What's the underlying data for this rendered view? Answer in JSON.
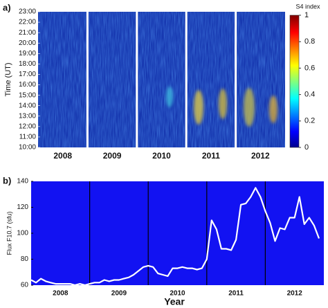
{
  "chart_data": [
    {
      "type": "heatmap",
      "label": "a)",
      "ylabel": "Time (UT)",
      "categories": [
        "2008",
        "2009",
        "2010",
        "2011",
        "2012"
      ],
      "ylim": [
        10,
        23
      ],
      "yticks": [
        {
          "value": 10,
          "label": "10:00"
        },
        {
          "value": 11,
          "label": "11:00"
        },
        {
          "value": 12,
          "label": "12:00"
        },
        {
          "value": 13,
          "label": "13:00"
        },
        {
          "value": 14,
          "label": "14:00"
        },
        {
          "value": 15,
          "label": "15:00"
        },
        {
          "value": 16,
          "label": "16:00"
        },
        {
          "value": 17,
          "label": "17:00"
        },
        {
          "value": 18,
          "label": "18:00"
        },
        {
          "value": 19,
          "label": "19:00"
        },
        {
          "value": 20,
          "label": "20:00"
        },
        {
          "value": 21,
          "label": "21:00"
        },
        {
          "value": 22,
          "label": "22:00"
        },
        {
          "value": 23,
          "label": "23:00"
        }
      ],
      "colorbar": {
        "title": "S4 index",
        "lim": [
          0,
          1
        ],
        "ticks": [
          0,
          0.2,
          0.4,
          0.6,
          0.8,
          1
        ]
      }
    },
    {
      "type": "line",
      "label": "b)",
      "ylabel": "Flux F10.7 (sfu)",
      "xlabel": "Year",
      "color": "#ffffff",
      "x": [
        2008,
        2008.083,
        2008.167,
        2008.25,
        2008.333,
        2008.417,
        2008.5,
        2008.583,
        2008.667,
        2008.75,
        2008.833,
        2008.917,
        2009,
        2009.083,
        2009.167,
        2009.25,
        2009.333,
        2009.417,
        2009.5,
        2009.583,
        2009.667,
        2009.75,
        2009.833,
        2009.917,
        2010,
        2010.083,
        2010.167,
        2010.25,
        2010.333,
        2010.417,
        2010.5,
        2010.583,
        2010.667,
        2010.75,
        2010.833,
        2010.917,
        2011,
        2011.083,
        2011.167,
        2011.25,
        2011.333,
        2011.417,
        2011.5,
        2011.583,
        2011.667,
        2011.75,
        2011.833,
        2011.917,
        2012,
        2012.083,
        2012.167,
        2012.25,
        2012.333,
        2012.417,
        2012.5,
        2012.583,
        2012.667,
        2012.75,
        2012.833,
        2012.917
      ],
      "values": [
        64,
        62,
        65,
        63,
        62,
        61,
        61,
        61,
        61,
        60,
        61,
        60,
        61,
        62,
        62,
        64,
        63,
        64,
        64,
        65,
        66,
        68,
        71,
        74,
        75,
        74,
        69,
        68,
        67,
        73,
        73,
        74,
        73,
        73,
        72,
        73,
        80,
        110,
        103,
        88,
        88,
        87,
        95,
        122,
        123,
        128,
        135,
        128,
        117,
        108,
        94,
        104,
        103,
        112,
        112,
        128,
        107,
        112,
        106,
        96
      ],
      "xlim": [
        2008,
        2013
      ],
      "ylim": [
        60,
        140
      ],
      "yticks": [
        60,
        80,
        100,
        120,
        140
      ],
      "xticks": [
        {
          "value": 2008.5,
          "label": "2008"
        },
        {
          "value": 2009.5,
          "label": "2009"
        },
        {
          "value": 2010.5,
          "label": "2010"
        },
        {
          "value": 2011.5,
          "label": "2011"
        },
        {
          "value": 2012.5,
          "label": "2012"
        }
      ],
      "year_lines": [
        2009,
        2010,
        2011,
        2012
      ]
    }
  ]
}
